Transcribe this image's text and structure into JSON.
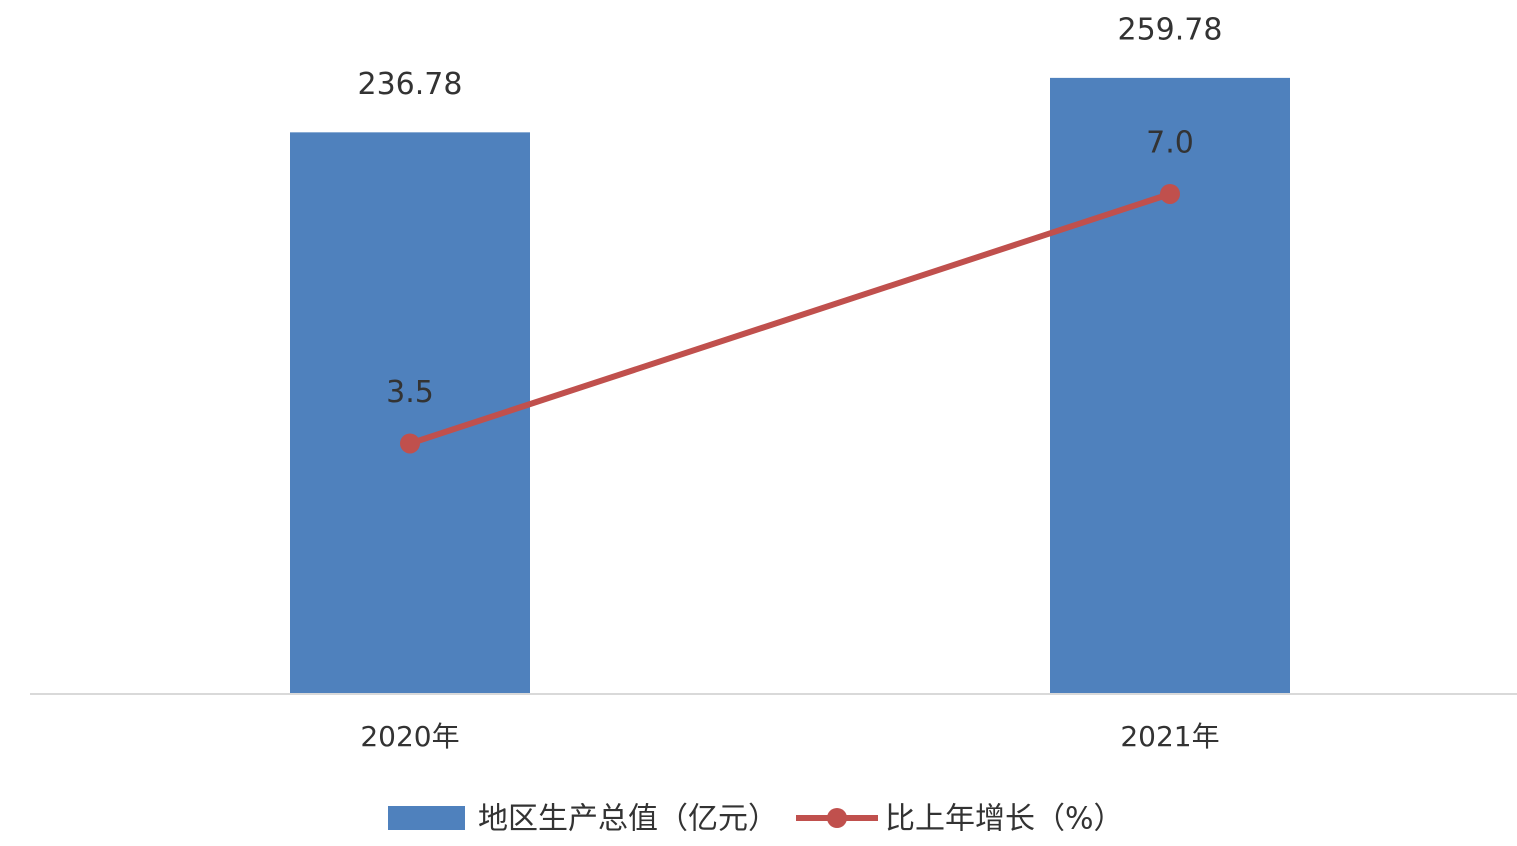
{
  "chart_data": {
    "type": "bar",
    "categories": [
      "2020年",
      "2021年"
    ],
    "series": [
      {
        "name": "地区生产总值（亿元）",
        "color": "#4f81bd",
        "values": [
          236.78,
          259.78
        ]
      },
      {
        "name": "比上年增长（%）",
        "type": "line",
        "axis": "y2",
        "color": "#c0504d",
        "values": [
          3.5,
          7.0
        ],
        "value_labels": [
          "3.5",
          "7.0"
        ]
      }
    ],
    "ylim": [
      0,
      280
    ],
    "y2lim": [
      0,
      9.3
    ]
  }
}
